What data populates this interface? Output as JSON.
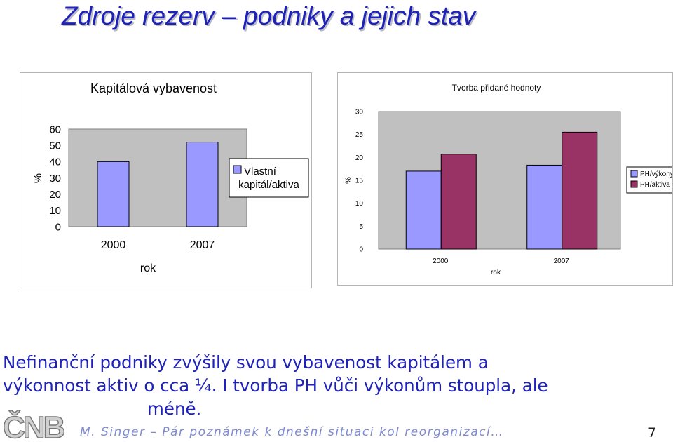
{
  "title": "Zdroje rezerv – podniky a jejich stav",
  "chart_data": [
    {
      "type": "bar",
      "title": "Kapitálová vybavenost",
      "xlabel": "rok",
      "ylabel": "%",
      "categories": [
        "2000",
        "2007"
      ],
      "ylim": [
        0,
        60
      ],
      "yticks": [
        "0",
        "10",
        "20",
        "30",
        "40",
        "50",
        "60"
      ],
      "series": [
        {
          "name": "Vlastní kapitál/aktiva",
          "values": [
            40,
            52
          ],
          "color": "#9999ff"
        }
      ],
      "legend": "right",
      "grid": false,
      "plot_bg": "#c0c0c0"
    },
    {
      "type": "bar",
      "title": "Tvorba přidané hodnoty",
      "xlabel": "rok",
      "ylabel": "%",
      "categories": [
        "2000",
        "2007"
      ],
      "ylim": [
        0,
        30
      ],
      "yticks": [
        "0",
        "5",
        "10",
        "15",
        "20",
        "25",
        "30"
      ],
      "series": [
        {
          "name": "PH/výkony",
          "values": [
            17,
            18.3
          ],
          "color": "#9999ff"
        },
        {
          "name": "PH/aktiva",
          "values": [
            20.7,
            25.5
          ],
          "color": "#993366"
        }
      ],
      "legend": "right",
      "grid": false,
      "plot_bg": "#c0c0c0"
    }
  ],
  "body": {
    "line1": "Nefinanční podniky zvýšily svou vybavenost kapitálem a",
    "line2": "výkonnost aktiv o cca ¼. I tvorba PH vůči výkonům stoupla, ale",
    "line3": "méně."
  },
  "footer": {
    "text": "M. Singer – Pár poznámek k dnešní situaci kol reorganizací…",
    "page": "7",
    "logo": "ČNB"
  },
  "colors": {
    "title": "#1f22b8",
    "body_text": "#1f22b8",
    "footer_text": "#7f8ad0"
  }
}
